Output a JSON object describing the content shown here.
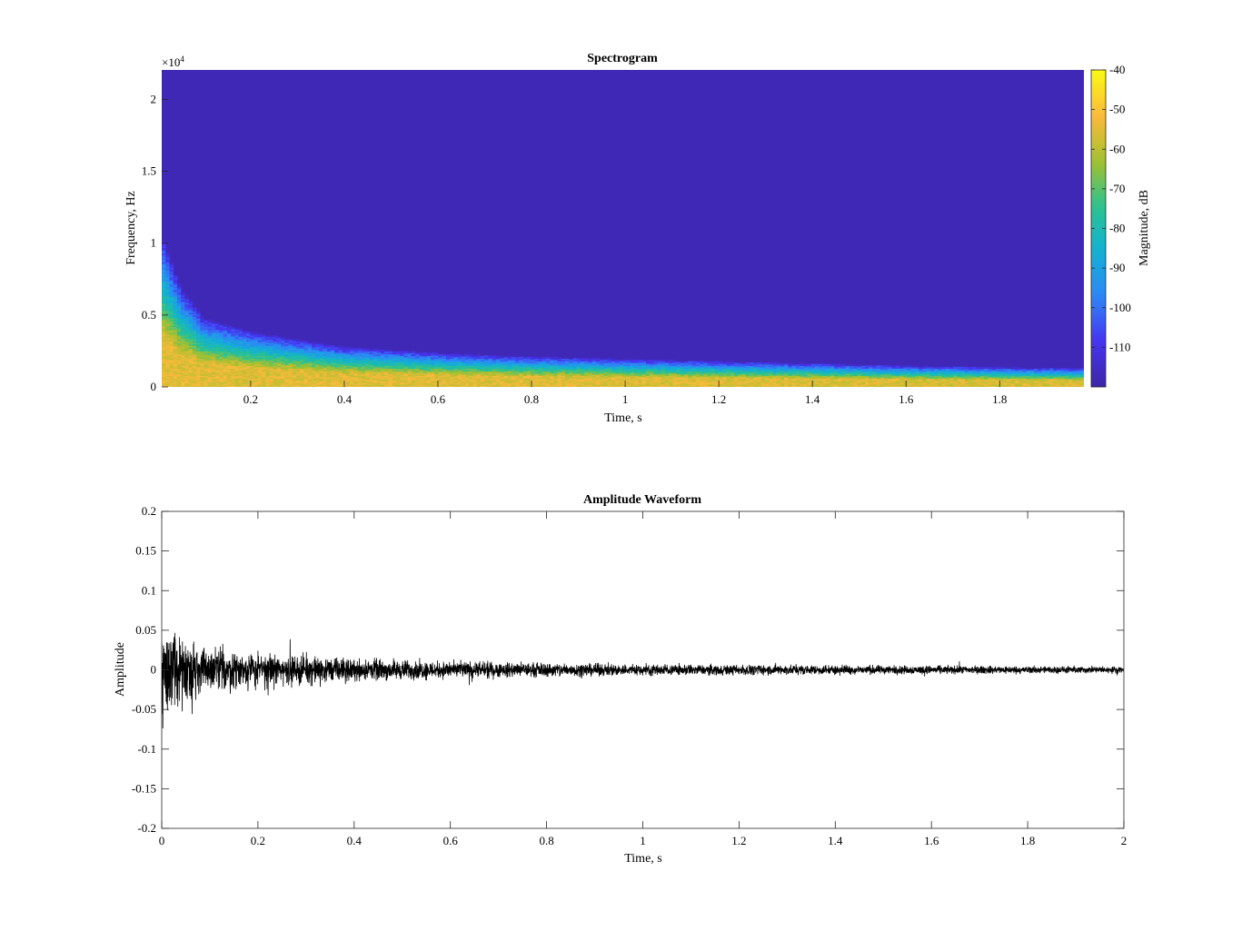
{
  "chart_data": [
    {
      "type": "heatmap",
      "title": "Spectrogram",
      "xlabel": "Time, s",
      "ylabel": "Frequency, Hz",
      "y_exponent_label": "×10",
      "y_exponent_power": "4",
      "xlim": [
        0.01,
        1.98
      ],
      "ylim": [
        0,
        22050
      ],
      "xticks": [
        0.2,
        0.4,
        0.6,
        0.8,
        1.0,
        1.2,
        1.4,
        1.6,
        1.8
      ],
      "xtick_labels": [
        "0.2",
        "0.4",
        "0.6",
        "0.8",
        "1",
        "1.2",
        "1.4",
        "1.6",
        "1.8"
      ],
      "yticks": [
        0,
        5000,
        10000,
        15000,
        20000
      ],
      "ytick_labels": [
        "0",
        "0.5",
        "1",
        "1.5",
        "2"
      ],
      "colorbar": {
        "label": "Magnitude, dB",
        "clim": [
          -120,
          -40
        ],
        "ticks": [
          -40,
          -50,
          -60,
          -70,
          -80,
          -90,
          -100,
          -110
        ],
        "tick_labels": [
          "-40",
          "-50",
          "-60",
          "-70",
          "-80",
          "-90",
          "-100",
          "-110"
        ],
        "colormap": "parula",
        "colors": [
          "#3e26a8",
          "#4634f0",
          "#2e87f8",
          "#12b1d3",
          "#2bc28f",
          "#a6c02d",
          "#fcba3c",
          "#f9fb14"
        ]
      },
      "band_edge_hz": [
        {
          "t": 0.01,
          "f": 10000
        },
        {
          "t": 0.05,
          "f": 6500
        },
        {
          "t": 0.1,
          "f": 4500
        },
        {
          "t": 0.2,
          "f": 3600
        },
        {
          "t": 0.4,
          "f": 2600
        },
        {
          "t": 0.6,
          "f": 2200
        },
        {
          "t": 0.8,
          "f": 1950
        },
        {
          "t": 1.0,
          "f": 1800
        },
        {
          "t": 1.2,
          "f": 1650
        },
        {
          "t": 1.4,
          "f": 1500
        },
        {
          "t": 1.6,
          "f": 1350
        },
        {
          "t": 1.8,
          "f": 1250
        },
        {
          "t": 1.98,
          "f": 1200
        }
      ],
      "background_db": -118,
      "peak_db": -55,
      "grid": false
    },
    {
      "type": "line",
      "title": "Amplitude Waveform",
      "xlabel": "Time, s",
      "ylabel": "Amplitude",
      "xlim": [
        0,
        2
      ],
      "ylim": [
        -0.2,
        0.2
      ],
      "xticks": [
        0,
        0.2,
        0.4,
        0.6,
        0.8,
        1.0,
        1.2,
        1.4,
        1.6,
        1.8,
        2.0
      ],
      "xtick_labels": [
        "0",
        "0.2",
        "0.4",
        "0.6",
        "0.8",
        "1",
        "1.2",
        "1.4",
        "1.6",
        "1.8",
        "2"
      ],
      "yticks": [
        0.2,
        0.15,
        0.1,
        0.05,
        0,
        -0.05,
        -0.1,
        -0.15,
        -0.2
      ],
      "ytick_labels": [
        "0.2",
        "0.15",
        "0.1",
        "0.05",
        "0",
        "-0.05",
        "-0.1",
        "-0.15",
        "-0.2"
      ],
      "series": [
        {
          "color": "#000000",
          "envelope": [
            {
              "t": 0.0,
              "a": 0.1
            },
            {
              "t": 0.02,
              "a": 0.07
            },
            {
              "t": 0.05,
              "a": 0.055
            },
            {
              "t": 0.1,
              "a": 0.04
            },
            {
              "t": 0.2,
              "a": 0.03
            },
            {
              "t": 0.4,
              "a": 0.02
            },
            {
              "t": 0.6,
              "a": 0.015
            },
            {
              "t": 1.0,
              "a": 0.01
            },
            {
              "t": 1.5,
              "a": 0.008
            },
            {
              "t": 2.0,
              "a": 0.006
            }
          ]
        }
      ],
      "grid": false
    }
  ]
}
